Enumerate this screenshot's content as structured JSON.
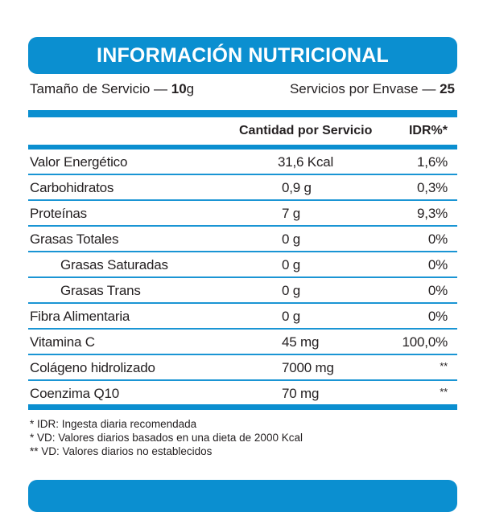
{
  "colors": {
    "accent": "#0b8fd0",
    "text": "#231f20",
    "background": "#ffffff"
  },
  "header": {
    "title": "INFORMACIÓN NUTRICIONAL"
  },
  "serving": {
    "size_label": "Tamaño de Servicio — ",
    "size_value": "10",
    "size_unit": "g",
    "per_container_label": "Servicios por Envase — ",
    "per_container_value": "25"
  },
  "table": {
    "columns": {
      "amount": "Cantidad por Servicio",
      "idr": "IDR%*"
    },
    "rows": [
      {
        "name": "Valor Energético",
        "amount": "31,6 Kcal",
        "idr": "1,6%"
      },
      {
        "name": "Carbohidratos",
        "amount": "0,9 g",
        "idr": "0,3%"
      },
      {
        "name": "Proteínas",
        "amount": "7 g",
        "idr": "9,3%"
      },
      {
        "name": "Grasas Totales",
        "amount": "0 g",
        "idr": "0%"
      },
      {
        "name": "Grasas Saturadas",
        "amount": "0 g",
        "idr": "0%",
        "indent": true
      },
      {
        "name": "Grasas Trans",
        "amount": "0 g",
        "idr": "0%",
        "indent": true
      },
      {
        "name": "Fibra Alimentaria",
        "amount": "0 g",
        "idr": "0%"
      },
      {
        "name": "Vitamina C",
        "amount": "45 mg",
        "idr": "100,0%"
      },
      {
        "name": "Colágeno hidrolizado",
        "amount": "7000 mg",
        "idr": "**"
      },
      {
        "name": "Coenzima Q10",
        "amount": "70 mg",
        "idr": "**"
      }
    ]
  },
  "footnotes": [
    "* IDR: Ingesta diaria recomendada",
    "* VD: Valores diarios basados en una dieta de 2000 Kcal",
    "** VD: Valores diarios no establecidos"
  ]
}
